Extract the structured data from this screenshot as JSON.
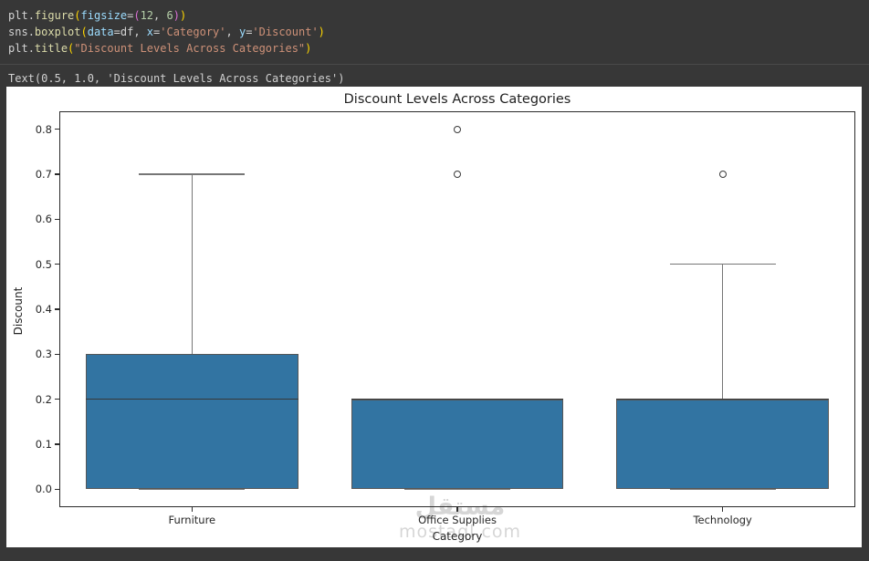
{
  "colors": {
    "editor_bg": "#373737",
    "plain": "#d4d4d4",
    "func": "#dcdcaa",
    "kwarg": "#9cdcfe",
    "number": "#b5cea8",
    "string": "#ce9178",
    "paren1": "#ffd700",
    "paren2": "#da70d6",
    "output_text": "#d0d0d0",
    "box_fill": "#3274a2",
    "box_edge": "#565656",
    "median": "#383838",
    "whisker": "#767676",
    "outlier_edge": "#3a3a3a"
  },
  "editor": {
    "code_lines": [
      [
        [
          "plain",
          "plt"
        ],
        [
          "plain",
          "."
        ],
        [
          "func",
          "figure"
        ],
        [
          "paren1",
          "("
        ],
        [
          "kwarg",
          "figsize"
        ],
        [
          "plain",
          "="
        ],
        [
          "paren2",
          "("
        ],
        [
          "number",
          "12"
        ],
        [
          "plain",
          ", "
        ],
        [
          "number",
          "6"
        ],
        [
          "paren2",
          ")"
        ],
        [
          "paren1",
          ")"
        ]
      ],
      [
        [
          "plain",
          "sns"
        ],
        [
          "plain",
          "."
        ],
        [
          "func",
          "boxplot"
        ],
        [
          "paren1",
          "("
        ],
        [
          "kwarg",
          "data"
        ],
        [
          "plain",
          "="
        ],
        [
          "plain",
          "df"
        ],
        [
          "plain",
          ", "
        ],
        [
          "kwarg",
          "x"
        ],
        [
          "plain",
          "="
        ],
        [
          "string",
          "'Category'"
        ],
        [
          "plain",
          ", "
        ],
        [
          "kwarg",
          "y"
        ],
        [
          "plain",
          "="
        ],
        [
          "string",
          "'Discount'"
        ],
        [
          "paren1",
          ")"
        ]
      ],
      [
        [
          "plain",
          "plt"
        ],
        [
          "plain",
          "."
        ],
        [
          "func",
          "title"
        ],
        [
          "paren1",
          "("
        ],
        [
          "string",
          "\"Discount Levels Across Categories\""
        ],
        [
          "paren1",
          ")"
        ]
      ]
    ],
    "output_text": "Text(0.5, 1.0, 'Discount Levels Across Categories')"
  },
  "chart_data": {
    "type": "boxplot",
    "title": "Discount Levels Across Categories",
    "xlabel": "Category",
    "ylabel": "Discount",
    "categories": [
      "Furniture",
      "Office Supplies",
      "Technology"
    ],
    "yticks": [
      0.0,
      0.1,
      0.2,
      0.3,
      0.4,
      0.5,
      0.6,
      0.7,
      0.8
    ],
    "ylim": [
      -0.04,
      0.84
    ],
    "grid": false,
    "legend": false,
    "boxes": [
      {
        "category": "Furniture",
        "whislo": 0.0,
        "q1": 0.0,
        "med": 0.2,
        "q3": 0.3,
        "whishi": 0.7,
        "outliers": []
      },
      {
        "category": "Office Supplies",
        "whislo": 0.0,
        "q1": 0.0,
        "med": 0.2,
        "q3": 0.2,
        "whishi": 0.2,
        "outliers": [
          0.7,
          0.8
        ]
      },
      {
        "category": "Technology",
        "whislo": 0.0,
        "q1": 0.0,
        "med": 0.2,
        "q3": 0.2,
        "whishi": 0.5,
        "outliers": [
          0.7
        ]
      }
    ]
  },
  "watermark": {
    "line1": "مستقل",
    "line2": "mostaql.com"
  }
}
